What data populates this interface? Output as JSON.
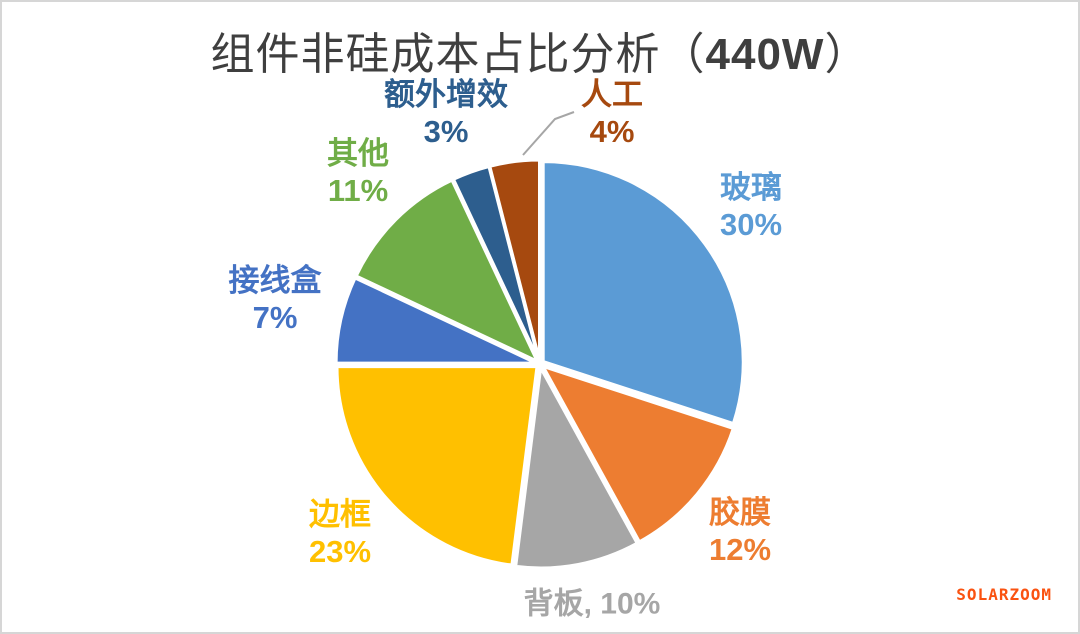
{
  "title": {
    "prefix": "组件非硅成本占比分析（",
    "emphasis": "440W",
    "suffix": "）",
    "full": "组件非硅成本占比分析（440W）"
  },
  "watermark": "SOLARZOOM",
  "colors": {
    "title": "#3F3F3F",
    "leader_line": "#A6A6A6",
    "border": "#D6D6D6",
    "watermark": "#FA5210",
    "background": "#FFFFFF",
    "slice_gap": "#FFFFFF"
  },
  "chart_data": {
    "type": "pie",
    "title": "组件非硅成本占比分析（440W）",
    "start_angle_deg": 0,
    "direction": "clockwise",
    "total": 100,
    "legend": "none",
    "slices": [
      {
        "key": "glass",
        "label": "玻璃",
        "value": 30,
        "pct_label": "30%",
        "color": "#5B9BD5"
      },
      {
        "key": "film",
        "label": "胶膜",
        "value": 12,
        "pct_label": "12%",
        "color": "#ED7D31"
      },
      {
        "key": "backsheet",
        "label": "背板",
        "value": 10,
        "pct_label": "10%",
        "inline_label": "背板, 10%",
        "color": "#A6A6A6"
      },
      {
        "key": "frame",
        "label": "边框",
        "value": 23,
        "pct_label": "23%",
        "color": "#FFC000"
      },
      {
        "key": "junction-box",
        "label": "接线盒",
        "value": 7,
        "pct_label": "7%",
        "color": "#4472C4"
      },
      {
        "key": "others",
        "label": "其他",
        "value": 11,
        "pct_label": "11%",
        "color": "#70AD47"
      },
      {
        "key": "extra-gain",
        "label": "额外增效",
        "value": 3,
        "pct_label": "3%",
        "color": "#2D5E8E"
      },
      {
        "key": "labor",
        "label": "人工",
        "value": 4,
        "pct_label": "4%",
        "color": "#A6490F"
      }
    ]
  }
}
